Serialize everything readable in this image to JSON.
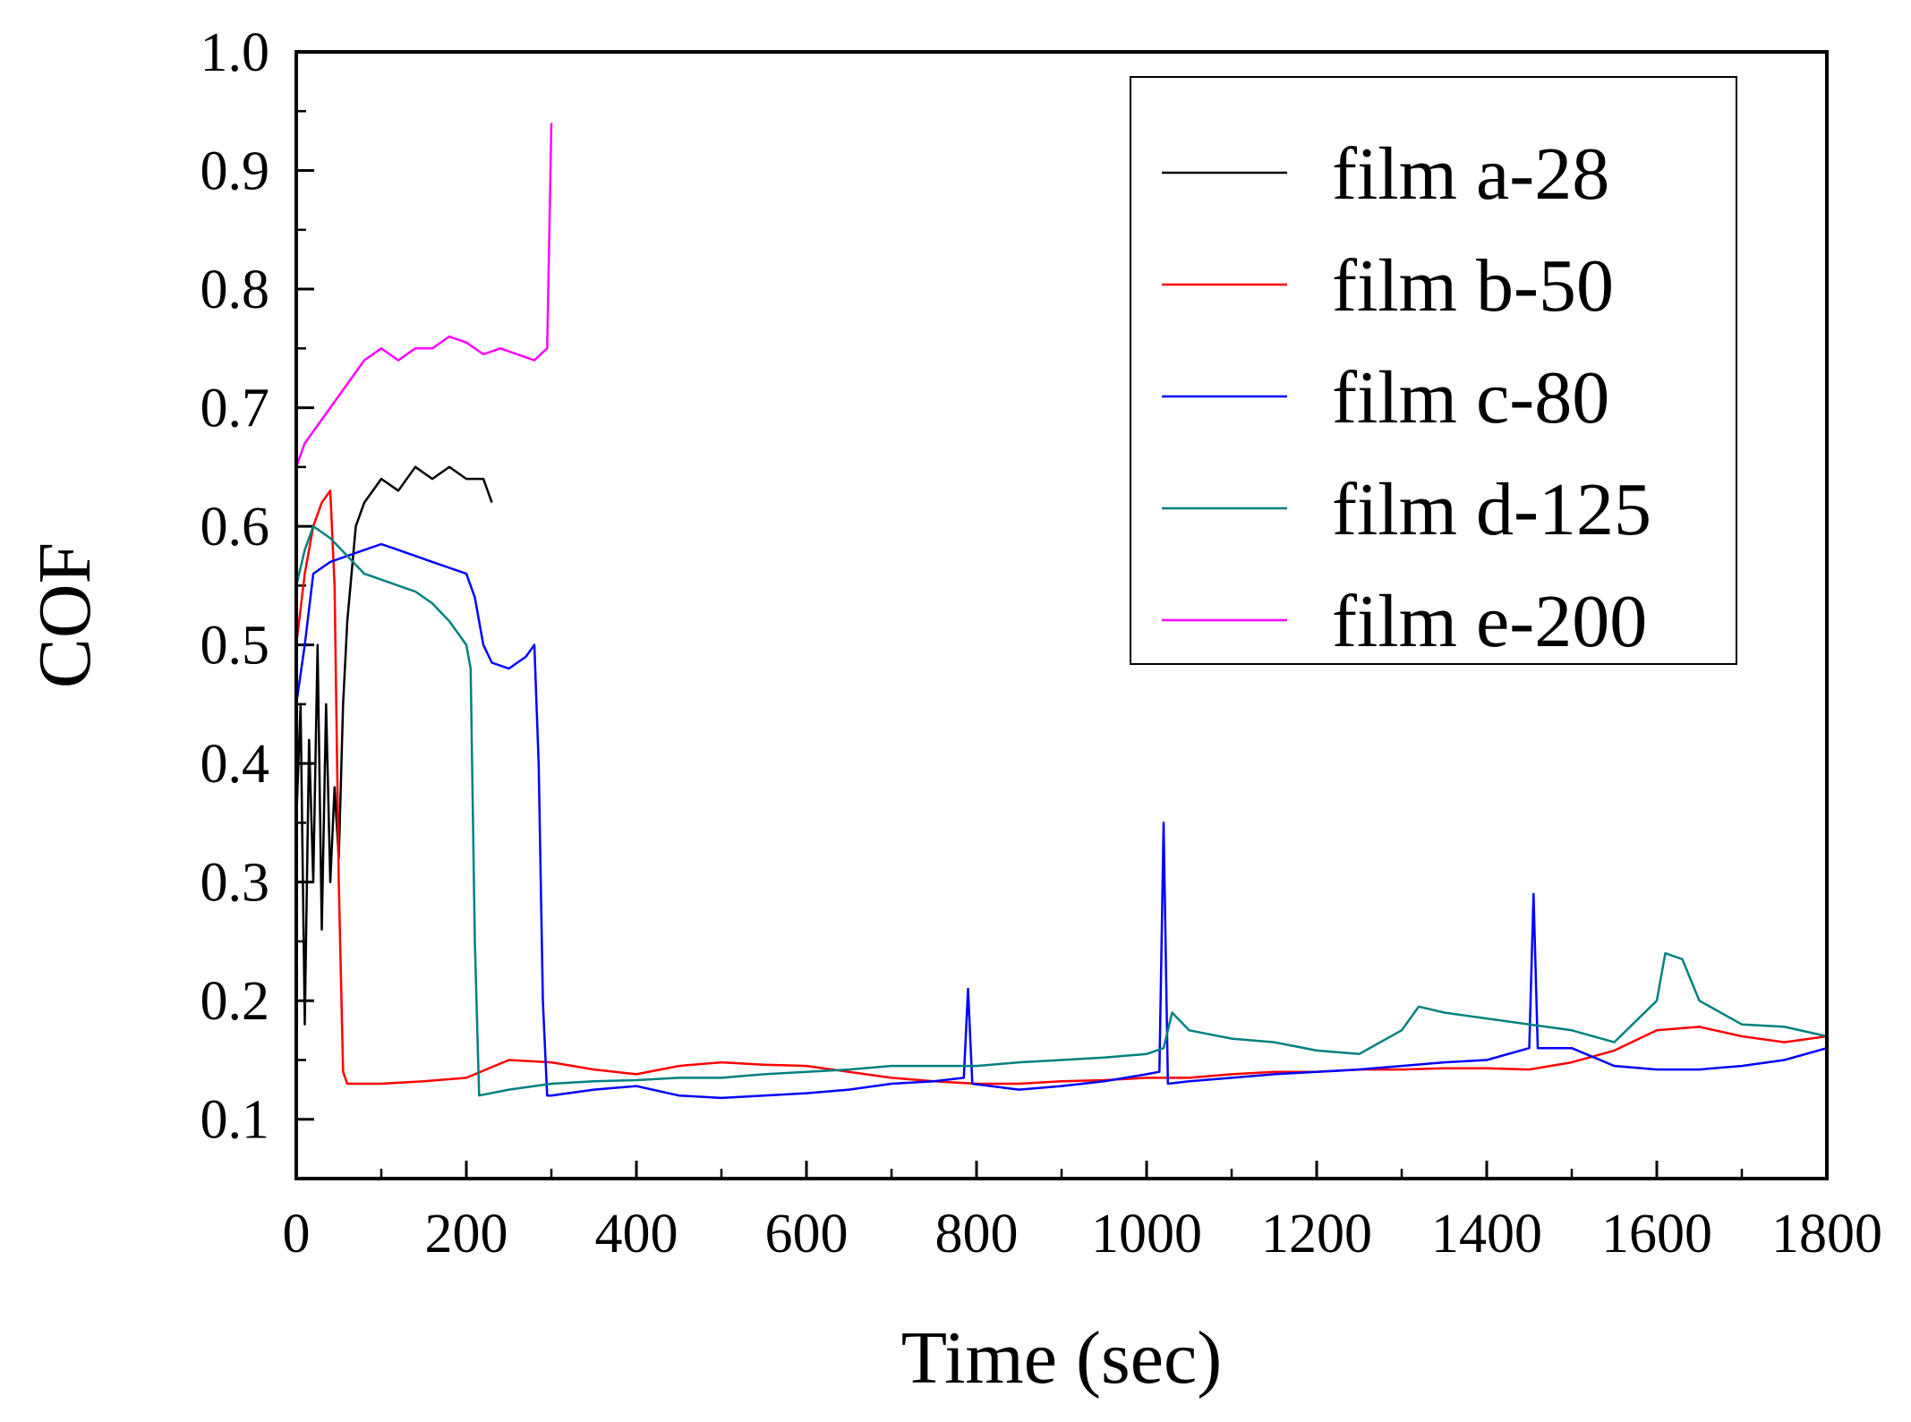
{
  "chart_data": {
    "type": "line",
    "title": "",
    "xlabel": "Time (sec)",
    "ylabel": "COF",
    "xlim": [
      0,
      1800
    ],
    "ylim": [
      0.05,
      1.0
    ],
    "xticks": [
      0,
      200,
      400,
      600,
      800,
      1000,
      1200,
      1400,
      1600,
      1800
    ],
    "xtick_labels": [
      "0",
      "200",
      "400",
      "600",
      "800",
      "1000",
      "1200",
      "1400",
      "1600",
      "1800"
    ],
    "yticks": [
      0.1,
      0.2,
      0.3,
      0.4,
      0.5,
      0.6,
      0.7,
      0.8,
      0.9,
      1.0
    ],
    "ytick_labels": [
      "0.1",
      "0.2",
      "0.3",
      "0.4",
      "0.5",
      "0.6",
      "0.7",
      "0.8",
      "0.9",
      "1.0"
    ],
    "grid": false,
    "legend_position": "top-right",
    "series": [
      {
        "name": "film a-28",
        "color": "#000000",
        "points": [
          [
            0,
            0.35
          ],
          [
            5,
            0.45
          ],
          [
            10,
            0.18
          ],
          [
            15,
            0.42
          ],
          [
            20,
            0.3
          ],
          [
            25,
            0.5
          ],
          [
            30,
            0.26
          ],
          [
            35,
            0.45
          ],
          [
            40,
            0.3
          ],
          [
            45,
            0.38
          ],
          [
            50,
            0.32
          ],
          [
            55,
            0.45
          ],
          [
            60,
            0.52
          ],
          [
            70,
            0.6
          ],
          [
            80,
            0.62
          ],
          [
            100,
            0.64
          ],
          [
            120,
            0.63
          ],
          [
            140,
            0.65
          ],
          [
            160,
            0.64
          ],
          [
            180,
            0.65
          ],
          [
            200,
            0.64
          ],
          [
            220,
            0.64
          ],
          [
            230,
            0.62
          ]
        ]
      },
      {
        "name": "film b-50",
        "color": "#ff0000",
        "points": [
          [
            0,
            0.5
          ],
          [
            10,
            0.56
          ],
          [
            20,
            0.6
          ],
          [
            30,
            0.62
          ],
          [
            40,
            0.63
          ],
          [
            45,
            0.55
          ],
          [
            50,
            0.3
          ],
          [
            55,
            0.14
          ],
          [
            60,
            0.13
          ],
          [
            100,
            0.13
          ],
          [
            150,
            0.132
          ],
          [
            200,
            0.135
          ],
          [
            250,
            0.15
          ],
          [
            300,
            0.148
          ],
          [
            350,
            0.142
          ],
          [
            400,
            0.138
          ],
          [
            450,
            0.145
          ],
          [
            500,
            0.148
          ],
          [
            550,
            0.146
          ],
          [
            600,
            0.145
          ],
          [
            650,
            0.14
          ],
          [
            700,
            0.135
          ],
          [
            750,
            0.132
          ],
          [
            800,
            0.13
          ],
          [
            850,
            0.13
          ],
          [
            900,
            0.132
          ],
          [
            950,
            0.133
          ],
          [
            1000,
            0.135
          ],
          [
            1050,
            0.135
          ],
          [
            1100,
            0.138
          ],
          [
            1150,
            0.14
          ],
          [
            1200,
            0.14
          ],
          [
            1250,
            0.142
          ],
          [
            1300,
            0.142
          ],
          [
            1350,
            0.143
          ],
          [
            1400,
            0.143
          ],
          [
            1450,
            0.142
          ],
          [
            1500,
            0.148
          ],
          [
            1550,
            0.158
          ],
          [
            1600,
            0.175
          ],
          [
            1650,
            0.178
          ],
          [
            1700,
            0.17
          ],
          [
            1750,
            0.165
          ],
          [
            1800,
            0.17
          ]
        ]
      },
      {
        "name": "film c-80",
        "color": "#0000ff",
        "points": [
          [
            0,
            0.45
          ],
          [
            10,
            0.5
          ],
          [
            20,
            0.56
          ],
          [
            40,
            0.57
          ],
          [
            60,
            0.575
          ],
          [
            80,
            0.58
          ],
          [
            100,
            0.585
          ],
          [
            120,
            0.58
          ],
          [
            140,
            0.575
          ],
          [
            160,
            0.57
          ],
          [
            180,
            0.565
          ],
          [
            200,
            0.56
          ],
          [
            210,
            0.54
          ],
          [
            220,
            0.5
          ],
          [
            230,
            0.485
          ],
          [
            250,
            0.48
          ],
          [
            270,
            0.49
          ],
          [
            280,
            0.5
          ],
          [
            285,
            0.4
          ],
          [
            290,
            0.2
          ],
          [
            295,
            0.12
          ],
          [
            300,
            0.12
          ],
          [
            350,
            0.125
          ],
          [
            400,
            0.128
          ],
          [
            450,
            0.12
          ],
          [
            500,
            0.118
          ],
          [
            550,
            0.12
          ],
          [
            600,
            0.122
          ],
          [
            650,
            0.125
          ],
          [
            700,
            0.13
          ],
          [
            750,
            0.132
          ],
          [
            785,
            0.135
          ],
          [
            790,
            0.21
          ],
          [
            795,
            0.13
          ],
          [
            850,
            0.125
          ],
          [
            900,
            0.128
          ],
          [
            950,
            0.132
          ],
          [
            1000,
            0.138
          ],
          [
            1015,
            0.14
          ],
          [
            1020,
            0.35
          ],
          [
            1025,
            0.13
          ],
          [
            1050,
            0.132
          ],
          [
            1100,
            0.135
          ],
          [
            1150,
            0.138
          ],
          [
            1200,
            0.14
          ],
          [
            1250,
            0.142
          ],
          [
            1300,
            0.145
          ],
          [
            1350,
            0.148
          ],
          [
            1400,
            0.15
          ],
          [
            1450,
            0.16
          ],
          [
            1455,
            0.29
          ],
          [
            1460,
            0.16
          ],
          [
            1500,
            0.16
          ],
          [
            1550,
            0.145
          ],
          [
            1600,
            0.142
          ],
          [
            1650,
            0.142
          ],
          [
            1700,
            0.145
          ],
          [
            1750,
            0.15
          ],
          [
            1800,
            0.16
          ]
        ]
      },
      {
        "name": "film d-125",
        "color": "#008080",
        "points": [
          [
            0,
            0.55
          ],
          [
            10,
            0.58
          ],
          [
            20,
            0.6
          ],
          [
            40,
            0.59
          ],
          [
            60,
            0.575
          ],
          [
            80,
            0.56
          ],
          [
            100,
            0.555
          ],
          [
            120,
            0.55
          ],
          [
            140,
            0.545
          ],
          [
            160,
            0.535
          ],
          [
            180,
            0.52
          ],
          [
            200,
            0.5
          ],
          [
            205,
            0.48
          ],
          [
            210,
            0.25
          ],
          [
            215,
            0.12
          ],
          [
            250,
            0.125
          ],
          [
            300,
            0.13
          ],
          [
            350,
            0.132
          ],
          [
            400,
            0.133
          ],
          [
            450,
            0.135
          ],
          [
            500,
            0.135
          ],
          [
            550,
            0.138
          ],
          [
            600,
            0.14
          ],
          [
            650,
            0.142
          ],
          [
            700,
            0.145
          ],
          [
            750,
            0.145
          ],
          [
            800,
            0.145
          ],
          [
            850,
            0.148
          ],
          [
            900,
            0.15
          ],
          [
            950,
            0.152
          ],
          [
            1000,
            0.155
          ],
          [
            1020,
            0.16
          ],
          [
            1030,
            0.19
          ],
          [
            1050,
            0.175
          ],
          [
            1100,
            0.168
          ],
          [
            1150,
            0.165
          ],
          [
            1200,
            0.158
          ],
          [
            1250,
            0.155
          ],
          [
            1300,
            0.175
          ],
          [
            1320,
            0.195
          ],
          [
            1350,
            0.19
          ],
          [
            1400,
            0.185
          ],
          [
            1450,
            0.18
          ],
          [
            1500,
            0.175
          ],
          [
            1550,
            0.165
          ],
          [
            1600,
            0.2
          ],
          [
            1610,
            0.24
          ],
          [
            1630,
            0.235
          ],
          [
            1650,
            0.2
          ],
          [
            1700,
            0.18
          ],
          [
            1750,
            0.178
          ],
          [
            1800,
            0.17
          ]
        ]
      },
      {
        "name": "film e-200",
        "color": "#ff00ff",
        "points": [
          [
            0,
            0.65
          ],
          [
            10,
            0.67
          ],
          [
            20,
            0.68
          ],
          [
            40,
            0.7
          ],
          [
            60,
            0.72
          ],
          [
            80,
            0.74
          ],
          [
            100,
            0.75
          ],
          [
            120,
            0.74
          ],
          [
            140,
            0.75
          ],
          [
            160,
            0.75
          ],
          [
            180,
            0.76
          ],
          [
            200,
            0.755
          ],
          [
            220,
            0.745
          ],
          [
            240,
            0.75
          ],
          [
            260,
            0.745
          ],
          [
            280,
            0.74
          ],
          [
            295,
            0.75
          ],
          [
            300,
            0.94
          ]
        ]
      }
    ]
  }
}
